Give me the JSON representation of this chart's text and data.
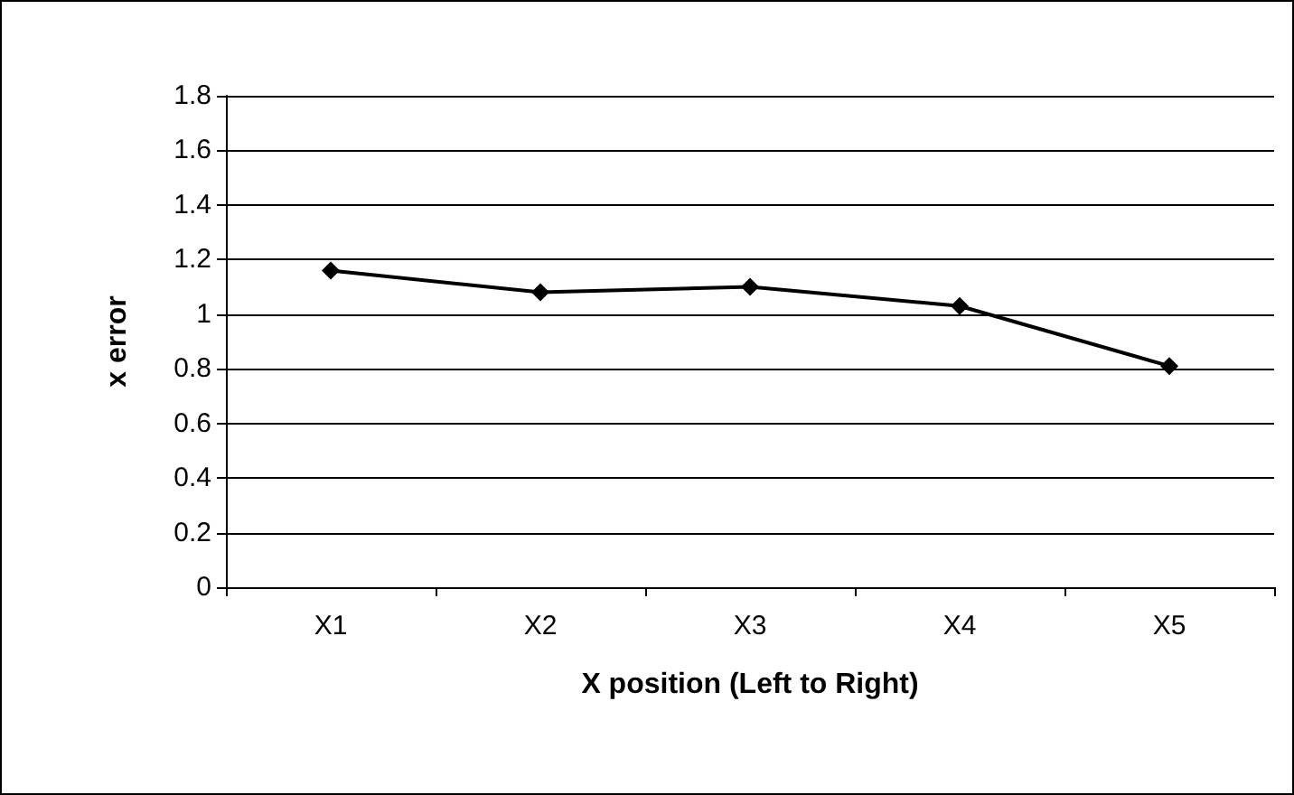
{
  "chart_data": {
    "type": "line",
    "xlabel": "X position (Left to Right)",
    "ylabel": "x error",
    "categories": [
      "X1",
      "X2",
      "X3",
      "X4",
      "X5"
    ],
    "series": [
      {
        "color": "#000000",
        "values": [
          1.16,
          1.08,
          1.1,
          1.03,
          0.81
        ]
      }
    ],
    "ylim": [
      0,
      1.8
    ],
    "yticks": [
      0,
      0.2,
      0.4,
      0.6,
      0.8,
      1,
      1.2,
      1.4,
      1.6,
      1.8
    ],
    "grid": "y",
    "marker": "diamond",
    "line_style": "solid"
  }
}
